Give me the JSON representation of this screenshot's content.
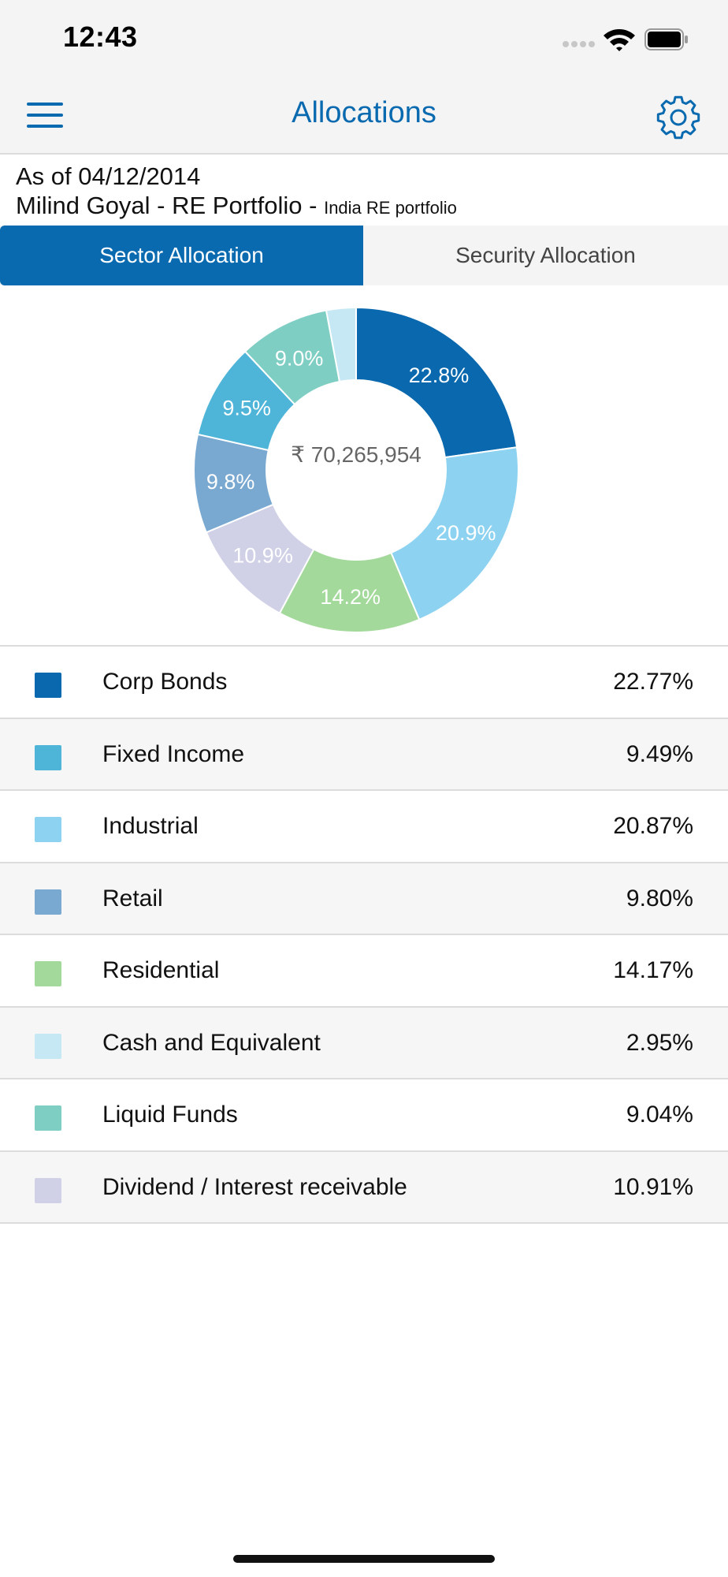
{
  "status_bar": {
    "time": "12:43"
  },
  "nav": {
    "title": "Allocations",
    "menu_icon": "hamburger-menu-icon",
    "settings_icon": "gear-icon",
    "accent": "#0a6ab0"
  },
  "info": {
    "as_of": "As of 04/12/2014",
    "portfolio_name": "Milind Goyal - RE Portfolio -",
    "portfolio_desc": "India RE portfolio"
  },
  "tabs": [
    {
      "label": "Sector Allocation",
      "active": true
    },
    {
      "label": "Security Allocation",
      "active": false
    }
  ],
  "chart_data": {
    "type": "pie",
    "center_label": "₹ 70,265,954",
    "slices": [
      {
        "label": "22.8%",
        "value": 22.77,
        "color": "#0a69ae"
      },
      {
        "label": "20.9%",
        "value": 20.87,
        "color": "#8dd3f1"
      },
      {
        "label": "14.2%",
        "value": 14.17,
        "color": "#a3d99a"
      },
      {
        "label": "10.9%",
        "value": 10.91,
        "color": "#d0d1e6"
      },
      {
        "label": "9.8%",
        "value": 9.8,
        "color": "#79a8d1"
      },
      {
        "label": "9.5%",
        "value": 9.49,
        "color": "#4fb5d8"
      },
      {
        "label": "9.0%",
        "value": 9.04,
        "color": "#7ecec4"
      },
      {
        "label": "",
        "value": 2.95,
        "color": "#c6e8f5"
      }
    ]
  },
  "legend": [
    {
      "label": "Corp Bonds",
      "value": "22.77%",
      "color": "#0a69ae"
    },
    {
      "label": "Fixed Income",
      "value": "9.49%",
      "color": "#4fb5d8"
    },
    {
      "label": "Industrial",
      "value": "20.87%",
      "color": "#8dd3f1"
    },
    {
      "label": "Retail",
      "value": "9.80%",
      "color": "#79a8d1"
    },
    {
      "label": "Residential",
      "value": "14.17%",
      "color": "#a3d99a"
    },
    {
      "label": "Cash and Equivalent",
      "value": "2.95%",
      "color": "#c6e8f5"
    },
    {
      "label": "Liquid Funds",
      "value": "9.04%",
      "color": "#7ecec4"
    },
    {
      "label": "Dividend / Interest receivable",
      "value": "10.91%",
      "color": "#d0d1e6"
    }
  ]
}
